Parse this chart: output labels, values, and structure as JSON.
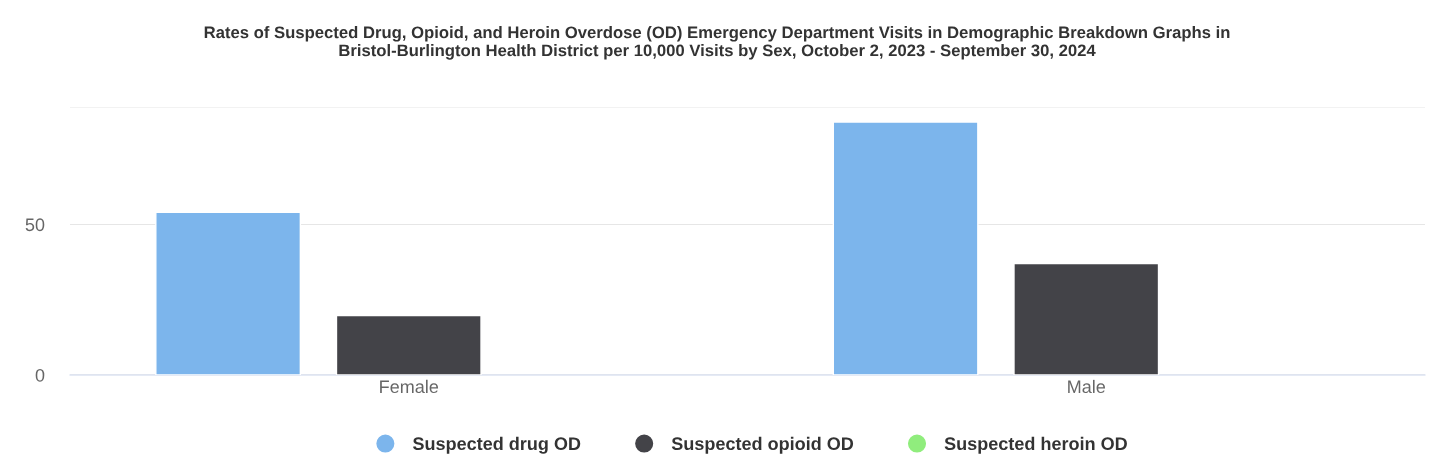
{
  "chart_data": {
    "type": "bar",
    "title": "Rates of Suspected Drug, Opioid, and Heroin Overdose (OD) Emergency Department Visits in Demographic Breakdown Graphs in\nBristol-Burlington Health District per 10,000 Visits by Sex, October 2, 2023 - September 30, 2024",
    "categories": [
      "Female",
      "Male"
    ],
    "series": [
      {
        "name": "Suspected drug OD",
        "color": "#7cb5ec",
        "values": [
          54,
          84
        ]
      },
      {
        "name": "Suspected opioid OD",
        "color": "#434348",
        "values": [
          19.7,
          37
        ]
      },
      {
        "name": "Suspected heroin OD",
        "color": "#90ed7d",
        "values": [
          null,
          null
        ]
      }
    ],
    "ylim": [
      0,
      89
    ],
    "yticks": [
      0,
      50,
      {
        "value": 89,
        "label": null
      }
    ],
    "grid": "y",
    "legend": "bottom"
  }
}
